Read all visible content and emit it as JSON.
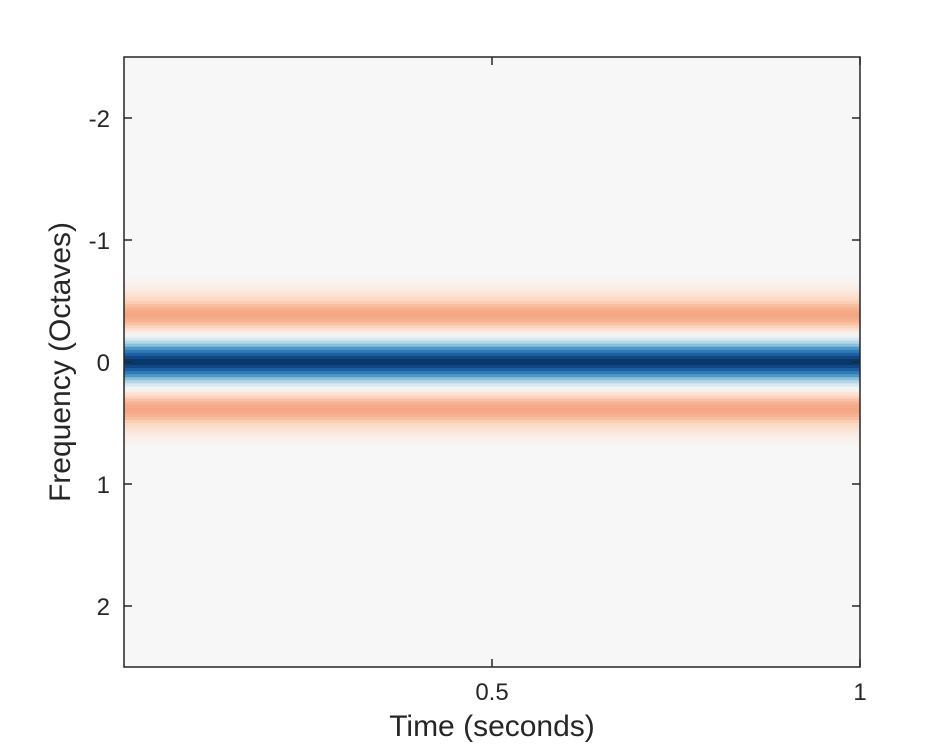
{
  "chart_data": {
    "type": "heatmap",
    "title": "",
    "xlabel": "Time (seconds)",
    "ylabel": "Frequency (Octaves)",
    "xlim": [
      0,
      1
    ],
    "ylim": [
      -2.5,
      2.5
    ],
    "y_reversed": true,
    "x_ticks": [
      0.5,
      1
    ],
    "x_tick_labels": [
      "0.5",
      "1"
    ],
    "y_ticks": [
      -2,
      -1,
      0,
      1,
      2
    ],
    "y_tick_labels": [
      "-2",
      "-1",
      "0",
      "1",
      "2"
    ],
    "grid": false,
    "legend": "none",
    "colormap": "diverging red-white-blue",
    "z_range": [
      -1,
      1
    ],
    "description_of_field": "constant in time; frequency profile",
    "frequency_profile": {
      "frequency": [
        -0.7,
        -0.6,
        -0.5,
        -0.45,
        -0.4,
        -0.35,
        -0.3,
        -0.25,
        -0.2,
        -0.15,
        -0.1,
        -0.05,
        0.0,
        0.05,
        0.1,
        0.15,
        0.2,
        0.25,
        0.3,
        0.35,
        0.4,
        0.45,
        0.5,
        0.6,
        0.7
      ],
      "value": [
        0.0,
        -0.08,
        -0.25,
        -0.38,
        -0.45,
        -0.42,
        -0.3,
        -0.12,
        0.1,
        0.35,
        0.65,
        0.88,
        1.0,
        0.88,
        0.65,
        0.35,
        0.1,
        -0.12,
        -0.3,
        -0.42,
        -0.45,
        -0.38,
        -0.25,
        -0.08,
        0.0
      ]
    }
  }
}
